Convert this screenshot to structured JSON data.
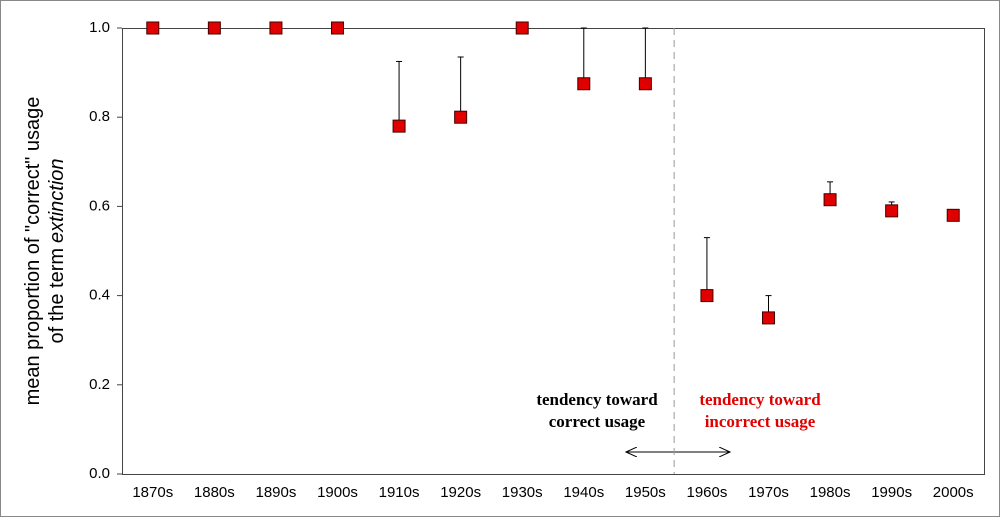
{
  "chart_data": {
    "type": "errorbar",
    "ylabel_lines": [
      "mean proportion of \"correct\" usage",
      "of the term"
    ],
    "ylabel_italic": "extinction",
    "categories": [
      "1870s",
      "1880s",
      "1890s",
      "1900s",
      "1910s",
      "1920s",
      "1930s",
      "1940s",
      "1950s",
      "1960s",
      "1970s",
      "1980s",
      "1990s",
      "2000s"
    ],
    "values": [
      1.0,
      1.0,
      1.0,
      1.0,
      0.78,
      0.8,
      1.0,
      0.875,
      0.875,
      0.4,
      0.35,
      0.615,
      0.59,
      0.58
    ],
    "errors": [
      0,
      0,
      0,
      0,
      0.145,
      0.135,
      0,
      0.125,
      0.125,
      0.13,
      0.05,
      0.04,
      0.02,
      0.01
    ],
    "color": "#e00000",
    "ylim": [
      0,
      1.0
    ],
    "yticks": [
      {
        "value": 0,
        "label": "0.0"
      },
      {
        "value": 0.2,
        "label": "0.2"
      },
      {
        "value": 0.4,
        "label": "0.4"
      },
      {
        "value": 0.6,
        "label": "0.6"
      },
      {
        "value": 0.8,
        "label": "0.8"
      },
      {
        "value": 1.0,
        "label": "1.0"
      }
    ],
    "annotations": [
      {
        "lines": [
          "tendency toward",
          "correct usage"
        ],
        "color": "#000000"
      },
      {
        "lines": [
          "tendency toward",
          "incorrect usage"
        ],
        "color": "#e00000"
      }
    ]
  }
}
